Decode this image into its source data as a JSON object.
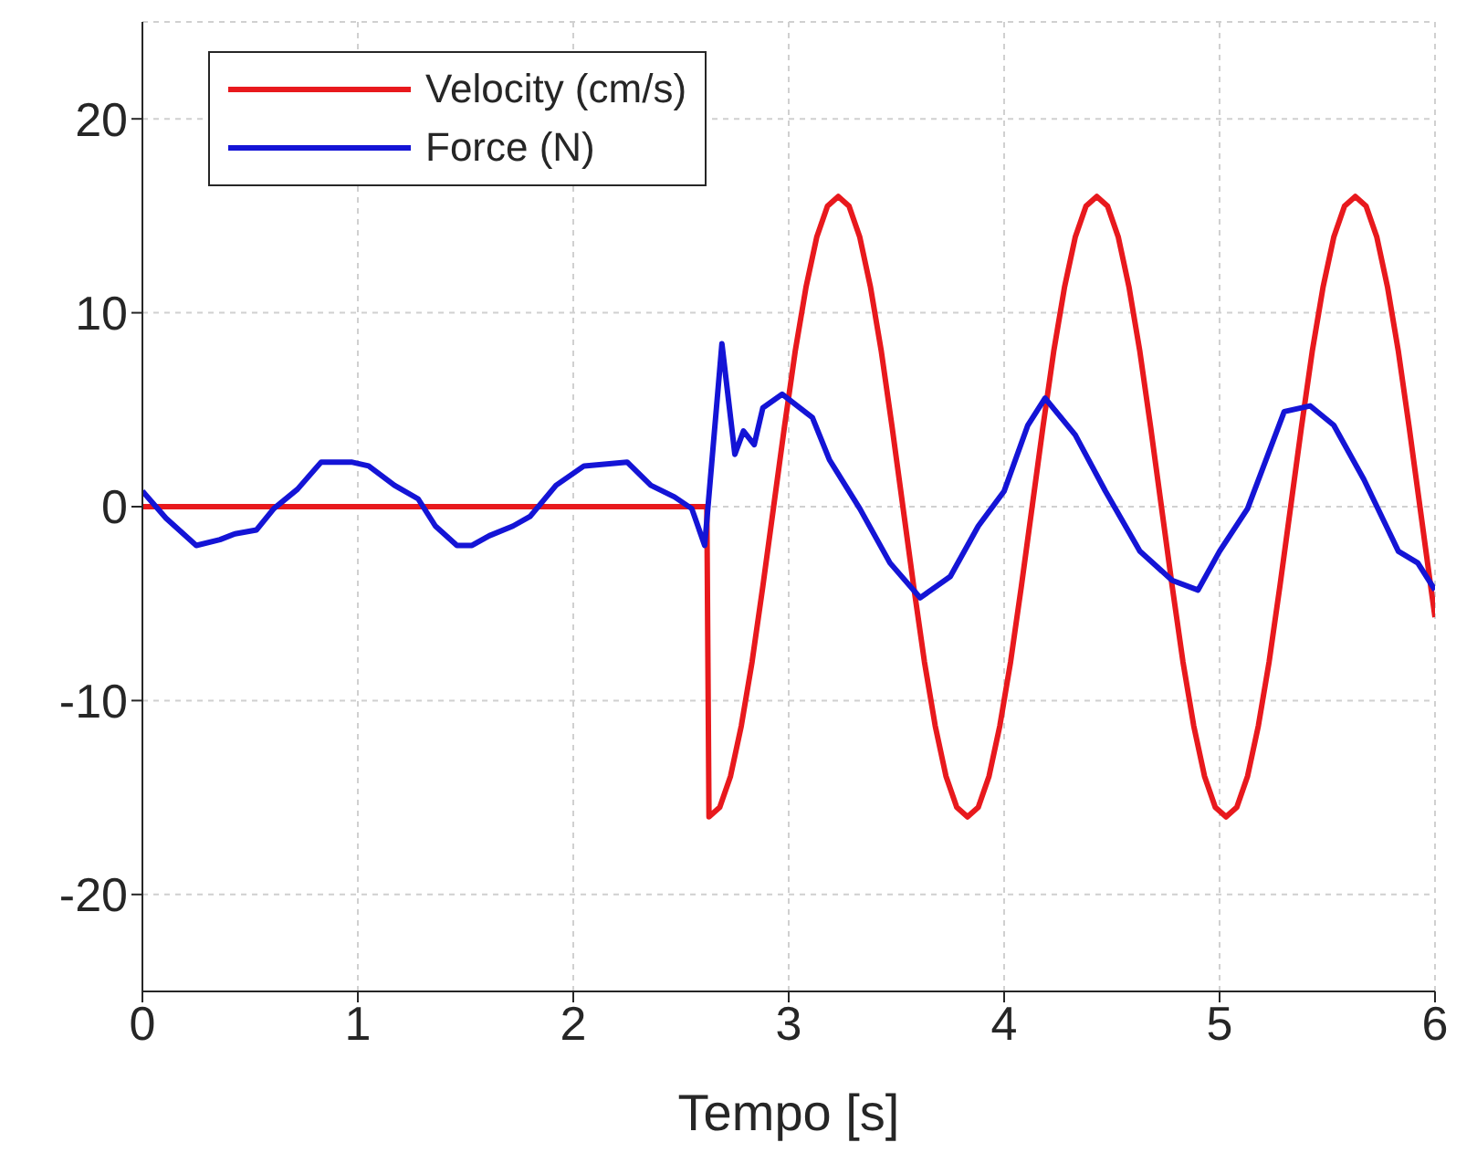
{
  "chart_data": {
    "type": "line",
    "xlabel": "Tempo [s]",
    "xlim": [
      0,
      6
    ],
    "xticks": [
      0,
      1,
      2,
      3,
      4,
      5,
      6
    ],
    "ylim": [
      -25,
      25
    ],
    "yticks": [
      -20,
      -10,
      0,
      10,
      20
    ],
    "grid": true,
    "legend": "top left",
    "line_style": "solid",
    "marker": "none",
    "series": [
      {
        "name": "Velocity (cm/s)",
        "color": "#e8191d",
        "x": [
          0,
          2.62,
          2.63,
          2.68,
          2.73,
          2.78,
          2.83,
          2.88,
          2.93,
          2.98,
          3.03,
          3.08,
          3.13,
          3.18,
          3.23,
          3.28,
          3.33,
          3.38,
          3.43,
          3.48,
          3.53,
          3.58,
          3.63,
          3.68,
          3.73,
          3.78,
          3.83,
          3.88,
          3.93,
          3.98,
          4.03,
          4.08,
          4.13,
          4.18,
          4.23,
          4.28,
          4.33,
          4.38,
          4.43,
          4.48,
          4.53,
          4.58,
          4.63,
          4.68,
          4.73,
          4.78,
          4.83,
          4.88,
          4.93,
          4.98,
          5.03,
          5.08,
          5.13,
          5.18,
          5.23,
          5.28,
          5.33,
          5.38,
          5.43,
          5.48,
          5.53,
          5.58,
          5.63,
          5.68,
          5.73,
          5.78,
          5.83,
          5.88,
          5.93,
          5.98,
          6
        ],
        "values": [
          0,
          0,
          -16,
          -15.5,
          -13.9,
          -11.3,
          -8,
          -4.1,
          0,
          4.1,
          8,
          11.3,
          13.9,
          15.5,
          16,
          15.5,
          13.9,
          11.3,
          8,
          4.1,
          0,
          -4.1,
          -8,
          -11.3,
          -13.9,
          -15.5,
          -16,
          -15.5,
          -13.9,
          -11.3,
          -8,
          -4.1,
          0,
          4.1,
          8,
          11.3,
          13.9,
          15.5,
          16,
          15.5,
          13.9,
          11.3,
          8,
          4.1,
          0,
          -4.1,
          -8,
          -11.3,
          -13.9,
          -15.5,
          -16,
          -15.5,
          -13.9,
          -11.3,
          -8,
          -4.1,
          0,
          4.1,
          8,
          11.3,
          13.9,
          15.5,
          16,
          15.5,
          13.9,
          11.3,
          8,
          4.1,
          0,
          -4.1,
          -5.7
        ]
      },
      {
        "name": "Force (N)",
        "color": "#1414d6",
        "x": [
          0,
          0.11,
          0.25,
          0.36,
          0.43,
          0.53,
          0.61,
          0.72,
          0.83,
          0.97,
          1.05,
          1.17,
          1.28,
          1.36,
          1.46,
          1.53,
          1.61,
          1.72,
          1.8,
          1.92,
          2.05,
          2.25,
          2.36,
          2.47,
          2.55,
          2.61,
          2.69,
          2.75,
          2.79,
          2.84,
          2.88,
          2.97,
          3.11,
          3.19,
          3.33,
          3.47,
          3.61,
          3.75,
          3.88,
          4.0,
          4.11,
          4.19,
          4.33,
          4.47,
          4.63,
          4.78,
          4.9,
          5.0,
          5.13,
          5.3,
          5.42,
          5.53,
          5.67,
          5.83,
          5.92,
          6.0
        ],
        "values": [
          0.8,
          -0.6,
          -2.0,
          -1.7,
          -1.4,
          -1.2,
          -0.1,
          0.9,
          2.3,
          2.3,
          2.1,
          1.1,
          0.4,
          -1.0,
          -2.0,
          -2.0,
          -1.5,
          -1.0,
          -0.5,
          1.1,
          2.1,
          2.3,
          1.1,
          0.5,
          -0.1,
          -2.0,
          8.4,
          2.7,
          3.9,
          3.2,
          5.1,
          5.8,
          4.6,
          2.4,
          -0.1,
          -2.9,
          -4.7,
          -3.6,
          -1.0,
          0.8,
          4.2,
          5.6,
          3.7,
          0.8,
          -2.3,
          -3.8,
          -4.3,
          -2.3,
          -0.1,
          4.9,
          5.2,
          4.2,
          1.4,
          -2.3,
          -2.9,
          -4.3
        ]
      }
    ]
  }
}
